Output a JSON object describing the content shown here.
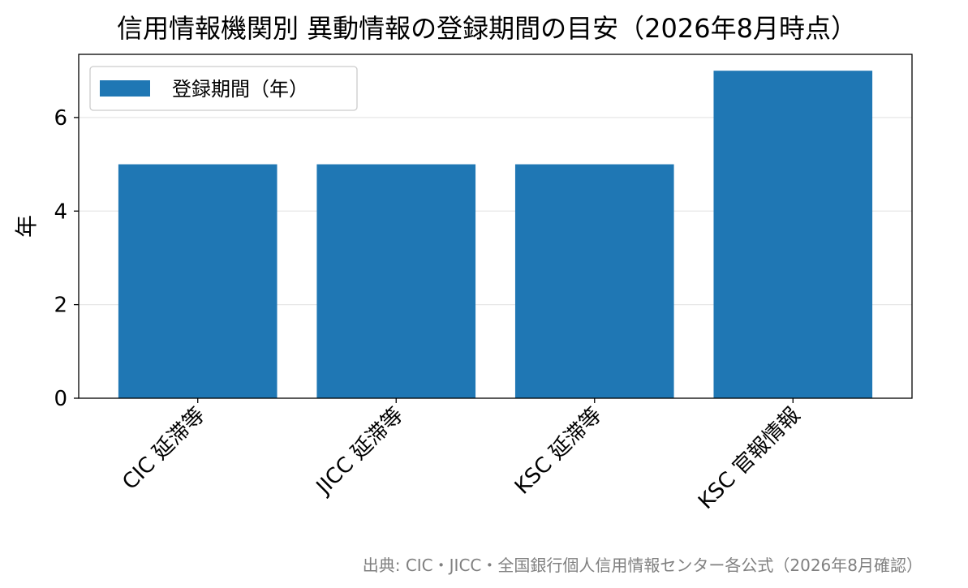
{
  "chart_data": {
    "type": "bar",
    "title": "信用情報機関別 異動情報の登録期間の目安（2026年8月時点）",
    "categories": [
      "CIC 延滞等",
      "JICC 延滞等",
      "KSC 延滞等",
      "KSC 官報情報"
    ],
    "series": [
      {
        "name": "登録期間（年）",
        "values": [
          5,
          5,
          5,
          7
        ],
        "color": "#1f77b4"
      }
    ],
    "xlabel": "",
    "ylabel": "年",
    "ylim": [
      0,
      7.35
    ],
    "yticks": [
      0,
      2,
      4,
      6
    ],
    "grid": "y",
    "legend_position": "upper-left",
    "source_note": "出典: CIC・JICC・全国銀行個人信用情報センター各公式（2026年8月確認）"
  }
}
